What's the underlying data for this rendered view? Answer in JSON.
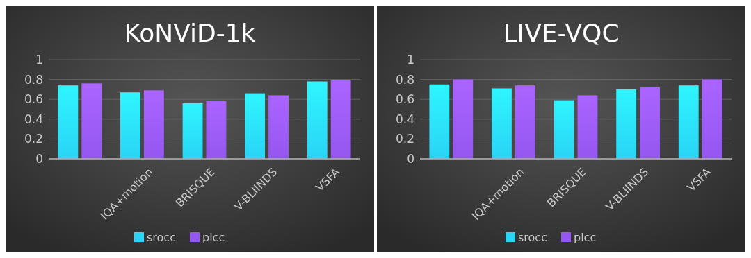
{
  "chart_data": [
    {
      "type": "bar",
      "title": "KoNViD-1k",
      "categories": [
        null,
        "IQA+motion",
        "BRISQUE",
        "V-BLIINDS",
        "VSFA"
      ],
      "series": [
        {
          "name": "srocc",
          "color": "#29d4f5",
          "values": [
            0.74,
            0.67,
            0.56,
            0.66,
            0.78
          ]
        },
        {
          "name": "plcc",
          "color": "#9457f0",
          "values": [
            0.76,
            0.69,
            0.58,
            0.64,
            0.79
          ]
        }
      ],
      "ylim": [
        0,
        1
      ],
      "yticks": [
        0,
        0.2,
        0.4,
        0.6,
        0.8,
        1
      ],
      "grid": "y",
      "legend": "bottom"
    },
    {
      "type": "bar",
      "title": "LIVE-VQC",
      "categories": [
        null,
        "IQA+motion",
        "BRISQUE",
        "V-BLIINDS",
        "VSFA"
      ],
      "series": [
        {
          "name": "srocc",
          "color": "#29d4f5",
          "values": [
            0.75,
            0.71,
            0.59,
            0.7,
            0.74
          ]
        },
        {
          "name": "plcc",
          "color": "#9457f0",
          "values": [
            0.8,
            0.74,
            0.64,
            0.72,
            0.8
          ]
        }
      ],
      "ylim": [
        0,
        1
      ],
      "yticks": [
        0,
        0.2,
        0.4,
        0.6,
        0.8,
        1
      ],
      "grid": "y",
      "legend": "bottom"
    }
  ]
}
